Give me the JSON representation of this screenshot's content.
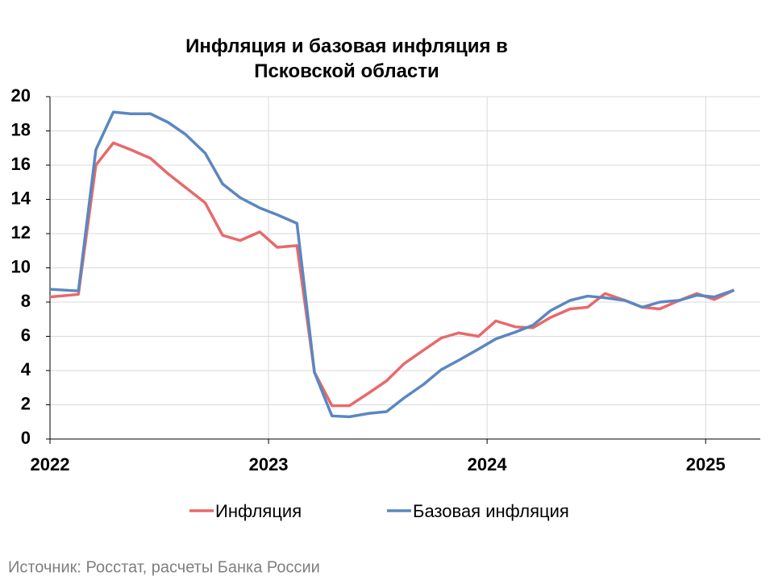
{
  "chart_data": {
    "type": "line",
    "title": "Инфляция и базовая инфляция в Псковской области",
    "x": [
      2022.0,
      2022.13,
      2022.21,
      2022.29,
      2022.37,
      2022.46,
      2022.54,
      2022.62,
      2022.71,
      2022.79,
      2022.87,
      2022.96,
      2023.04,
      2023.13,
      2023.21,
      2023.29,
      2023.37,
      2023.46,
      2023.54,
      2023.62,
      2023.71,
      2023.79,
      2023.87,
      2023.96,
      2024.04,
      2024.13,
      2024.21,
      2024.29,
      2024.38,
      2024.46,
      2024.54,
      2024.63,
      2024.71,
      2024.79,
      2024.88,
      2024.96,
      2025.04,
      2025.13
    ],
    "series": [
      {
        "name": "Инфляция",
        "color": "#e8696b",
        "values": [
          8.3,
          8.45,
          16.0,
          17.3,
          16.9,
          16.4,
          15.5,
          14.7,
          13.8,
          11.9,
          11.6,
          12.1,
          11.2,
          11.3,
          3.9,
          1.95,
          1.95,
          2.7,
          3.4,
          4.4,
          5.2,
          5.9,
          6.2,
          6.0,
          6.9,
          6.55,
          6.5,
          7.1,
          7.6,
          7.7,
          8.5,
          8.1,
          7.7,
          7.6,
          8.1,
          8.5,
          8.15,
          8.7
        ]
      },
      {
        "name": "Базовая инфляция",
        "color": "#5b87c0",
        "values": [
          8.75,
          8.65,
          16.9,
          19.1,
          19.0,
          19.0,
          18.5,
          17.8,
          16.7,
          14.9,
          14.1,
          13.5,
          13.1,
          12.6,
          3.9,
          1.35,
          1.3,
          1.5,
          1.6,
          2.4,
          3.2,
          4.05,
          4.6,
          5.25,
          5.85,
          6.25,
          6.65,
          7.5,
          8.1,
          8.35,
          8.25,
          8.1,
          7.7,
          8.0,
          8.1,
          8.4,
          8.3,
          8.7
        ]
      }
    ],
    "xlim": [
      2022,
      2025.25
    ],
    "xticks": [
      2022,
      2023,
      2024,
      2025
    ],
    "ylim": [
      0,
      20
    ],
    "yticks": [
      0,
      2,
      4,
      6,
      8,
      10,
      12,
      14,
      16,
      18,
      20
    ],
    "grid": true,
    "legend": "bottom",
    "source": "Источник: Росстат, расчеты Банка России"
  }
}
